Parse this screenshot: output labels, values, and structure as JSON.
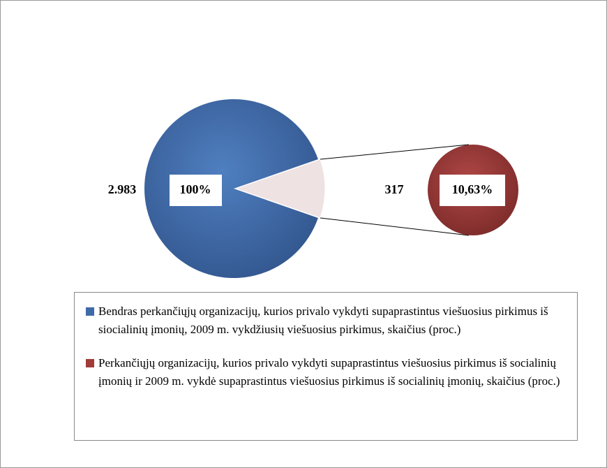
{
  "chart_data": {
    "type": "pie",
    "series": [
      {
        "name": "Bendras perkančiųjų organizacijų, kurios privalo vykdyti supaprastintus viešuosius pirkimus iš siocialinių įmonių, 2009 m. vykdžiusių viešuosius pirkimus, skaičius (proc.)",
        "color": "#3f6aa8"
      },
      {
        "name": "Perkančiųjų organizacijų, kurios privalo vykdyti supaprastintus viešuosius pirkimus iš socialinių įmonių ir  2009 m. vykdė supaprastintus viešuosius pirkimus iš socialinių įmonių, skaičius (proc.)",
        "color": "#a03c3a"
      }
    ],
    "values": [
      2983,
      317
    ],
    "value_labels": [
      "2.983",
      "317"
    ],
    "percents": [
      100,
      10.63
    ],
    "percent_labels": [
      "100%",
      "10,63%"
    ],
    "wedge_color": "#efe2e2"
  }
}
